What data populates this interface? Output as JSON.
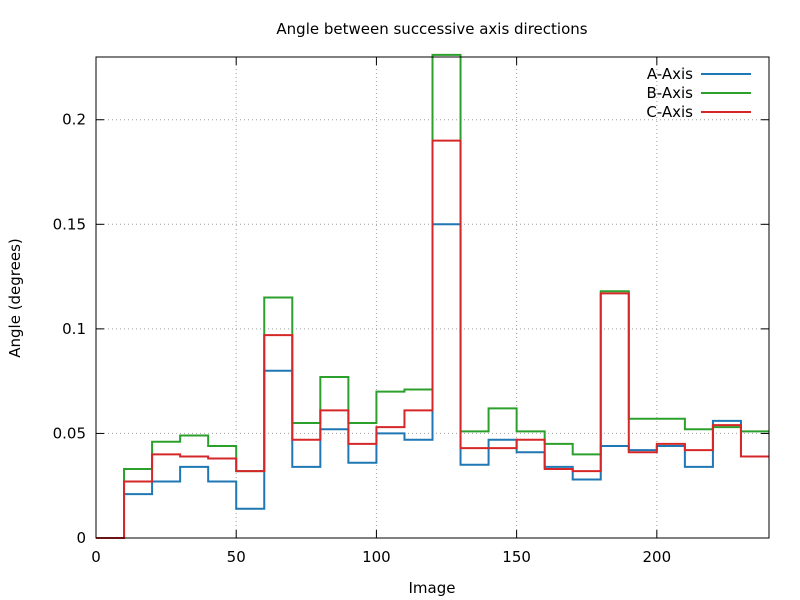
{
  "chart_data": {
    "type": "line",
    "title": "Angle between successive axis directions",
    "xlabel": "Image",
    "ylabel": "Angle (degrees)",
    "xlim": [
      0,
      240
    ],
    "ylim": [
      0,
      0.23
    ],
    "xticks": [
      0,
      50,
      100,
      150,
      200
    ],
    "yticks": [
      0,
      0.05,
      0.1,
      0.15,
      0.2
    ],
    "xtick_labels": [
      "0",
      "50",
      "100",
      "150",
      "200"
    ],
    "ytick_labels": [
      "0",
      "0.05",
      "0.1",
      "0.15",
      "0.2"
    ],
    "grid": true,
    "legend_position": "top-right",
    "step_x": [
      0,
      10,
      20,
      30,
      40,
      50,
      60,
      70,
      80,
      90,
      100,
      110,
      120,
      130,
      140,
      150,
      160,
      170,
      180,
      190,
      200,
      210,
      220,
      230,
      240
    ],
    "series": [
      {
        "name": "A-Axis",
        "color": "#1f77b4",
        "values": [
          0,
          0.021,
          0.027,
          0.034,
          0.027,
          0.014,
          0.08,
          0.034,
          0.052,
          0.036,
          0.05,
          0.047,
          0.15,
          0.035,
          0.047,
          0.041,
          0.034,
          0.028,
          0.044,
          0.042,
          0.044,
          0.034,
          0.056,
          0.039
        ]
      },
      {
        "name": "B-Axis",
        "color": "#2ca02c",
        "values": [
          0,
          0.033,
          0.046,
          0.049,
          0.044,
          0.032,
          0.115,
          0.055,
          0.077,
          0.055,
          0.07,
          0.071,
          0.231,
          0.051,
          0.062,
          0.051,
          0.045,
          0.04,
          0.118,
          0.057,
          0.057,
          0.052,
          0.053,
          0.051
        ]
      },
      {
        "name": "C-Axis",
        "color": "#d62728",
        "values": [
          0,
          0.027,
          0.04,
          0.039,
          0.038,
          0.032,
          0.097,
          0.047,
          0.061,
          0.045,
          0.053,
          0.061,
          0.19,
          0.043,
          0.043,
          0.047,
          0.033,
          0.032,
          0.117,
          0.041,
          0.045,
          0.042,
          0.054,
          0.039
        ]
      }
    ]
  }
}
